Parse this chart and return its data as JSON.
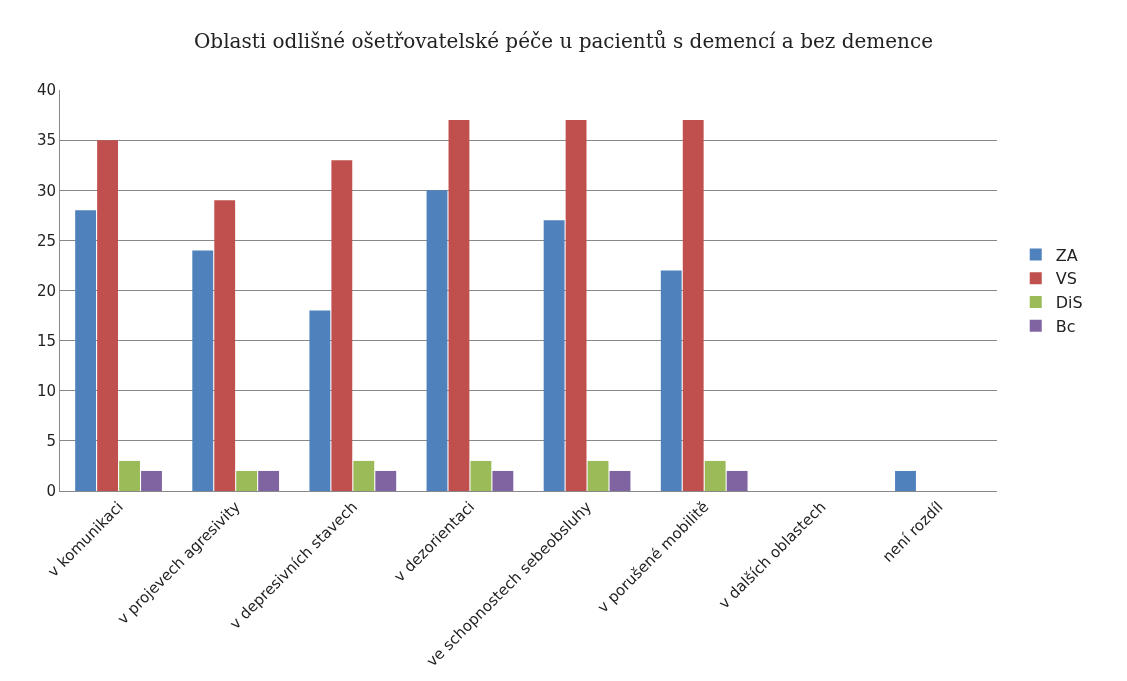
{
  "chart_data": {
    "type": "bar",
    "title": "Oblasti odlišné ošetřovatelské péče u pacientů s demencí a bez demence",
    "categories": [
      "v komunikaci",
      "v projevech agresivity",
      "v depresivních stavech",
      "v dezorientaci",
      "ve schopnostech sebeobsluhy",
      "v porušené mobilitě",
      "v dalších oblastech",
      "není rozdíl"
    ],
    "series": [
      {
        "name": "ZA",
        "color": "#4f81bd",
        "values": [
          28,
          24,
          18,
          30,
          27,
          22,
          0,
          2
        ]
      },
      {
        "name": "VS",
        "color": "#c0504d",
        "values": [
          35,
          29,
          33,
          37,
          37,
          37,
          0,
          0
        ]
      },
      {
        "name": "DiS",
        "color": "#9bbb59",
        "values": [
          3,
          2,
          3,
          3,
          3,
          3,
          0,
          0
        ]
      },
      {
        "name": "Bc",
        "color": "#8064a2",
        "values": [
          2,
          2,
          2,
          2,
          2,
          2,
          0,
          0
        ]
      }
    ],
    "ylim": [
      0,
      40
    ],
    "yticks": [
      0,
      5,
      10,
      15,
      20,
      25,
      30,
      35,
      40
    ],
    "grid": "y",
    "legend": "right"
  }
}
